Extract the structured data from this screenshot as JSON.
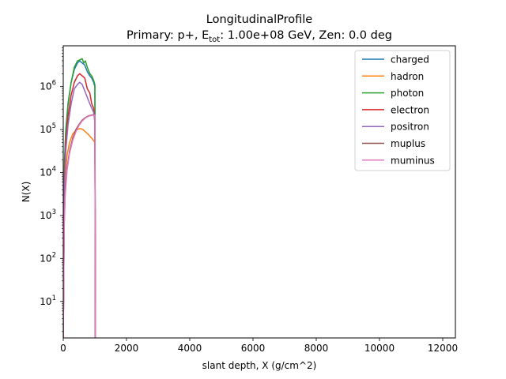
{
  "chart_data": {
    "type": "line",
    "title": "LongitudinalProfile",
    "subtitle_prefix": "Primary: p+, E",
    "subtitle_sub": "tot",
    "subtitle_suffix": ": 1.00e+08 GeV, Zen: 0.0 deg",
    "xlabel": "slant depth, X (g/cm^2)",
    "ylabel": "N(X)",
    "xlim": [
      0,
      12400
    ],
    "ylim_log10": [
      0.15,
      6.95
    ],
    "y_scale": "log",
    "grid": false,
    "legend_position": "top-right",
    "x_ticks": [
      0,
      2000,
      4000,
      6000,
      8000,
      10000,
      12000
    ],
    "x_tick_labels": [
      "0",
      "2000",
      "4000",
      "6000",
      "8000",
      "10000",
      "12000"
    ],
    "y_ticks_log10": [
      1,
      2,
      3,
      4,
      5,
      6
    ],
    "y_tick_labels": [
      {
        "base": "10",
        "exp": "1"
      },
      {
        "base": "10",
        "exp": "2"
      },
      {
        "base": "10",
        "exp": "3"
      },
      {
        "base": "10",
        "exp": "4"
      },
      {
        "base": "10",
        "exp": "5"
      },
      {
        "base": "10",
        "exp": "6"
      }
    ],
    "series": [
      {
        "name": "charged",
        "color": "#1f77b4",
        "x": [
          0,
          40,
          80,
          150,
          250,
          350,
          450,
          520,
          600,
          680,
          760,
          840,
          900,
          960,
          1000,
          1010,
          1015
        ],
        "log10y": [
          0.15,
          4.3,
          5.0,
          5.6,
          6.1,
          6.4,
          6.55,
          6.6,
          6.55,
          6.5,
          6.35,
          6.25,
          6.2,
          6.1,
          6.0,
          3.0,
          0.15
        ]
      },
      {
        "name": "hadron",
        "color": "#ff7f0e",
        "x": [
          0,
          30,
          60,
          120,
          200,
          300,
          400,
          500,
          560,
          620,
          700,
          800,
          900,
          1000,
          1010,
          1015
        ],
        "log10y": [
          0.15,
          3.2,
          3.9,
          4.4,
          4.7,
          4.9,
          4.98,
          5.02,
          5.02,
          5.0,
          4.95,
          4.88,
          4.8,
          4.7,
          2.5,
          0.15
        ]
      },
      {
        "name": "photon",
        "color": "#2ca02c",
        "x": [
          0,
          40,
          80,
          150,
          250,
          350,
          450,
          520,
          600,
          650,
          700,
          760,
          840,
          900,
          960,
          1000,
          1010,
          1015
        ],
        "log10y": [
          0.15,
          4.2,
          4.95,
          5.55,
          6.1,
          6.45,
          6.6,
          6.62,
          6.65,
          6.55,
          6.6,
          6.45,
          6.3,
          6.25,
          6.15,
          6.05,
          3.0,
          0.15
        ]
      },
      {
        "name": "electron",
        "color": "#d62728",
        "x": [
          0,
          40,
          80,
          150,
          250,
          350,
          450,
          520,
          600,
          680,
          760,
          840,
          900,
          960,
          1000,
          1010,
          1015
        ],
        "log10y": [
          0.15,
          3.9,
          4.7,
          5.3,
          5.8,
          6.1,
          6.25,
          6.3,
          6.25,
          6.2,
          5.95,
          5.85,
          5.6,
          5.5,
          5.15,
          2.5,
          0.15
        ]
      },
      {
        "name": "positron",
        "color": "#9467bd",
        "x": [
          0,
          40,
          80,
          150,
          250,
          350,
          450,
          520,
          600,
          680,
          760,
          840,
          900,
          960,
          1000,
          1010,
          1015
        ],
        "log10y": [
          0.15,
          3.7,
          4.5,
          5.1,
          5.6,
          5.95,
          6.05,
          6.1,
          6.05,
          5.9,
          5.75,
          5.6,
          5.5,
          5.4,
          5.2,
          2.5,
          0.15
        ]
      },
      {
        "name": "muplus",
        "color": "#8c564b",
        "x": [
          0,
          30,
          60,
          120,
          200,
          300,
          400,
          500,
          600,
          700,
          800,
          900,
          1000,
          1010,
          1015
        ],
        "log10y": [
          0.15,
          2.8,
          3.5,
          4.1,
          4.5,
          4.8,
          5.0,
          5.12,
          5.22,
          5.28,
          5.32,
          5.34,
          5.35,
          2.5,
          0.15
        ]
      },
      {
        "name": "muminus",
        "color": "#e377c2",
        "x": [
          0,
          30,
          60,
          120,
          200,
          300,
          400,
          500,
          600,
          700,
          800,
          900,
          1000,
          1010,
          1015
        ],
        "log10y": [
          0.15,
          2.7,
          3.45,
          4.05,
          4.45,
          4.75,
          4.95,
          5.1,
          5.2,
          5.27,
          5.31,
          5.33,
          5.34,
          2.5,
          0.15
        ]
      }
    ]
  }
}
